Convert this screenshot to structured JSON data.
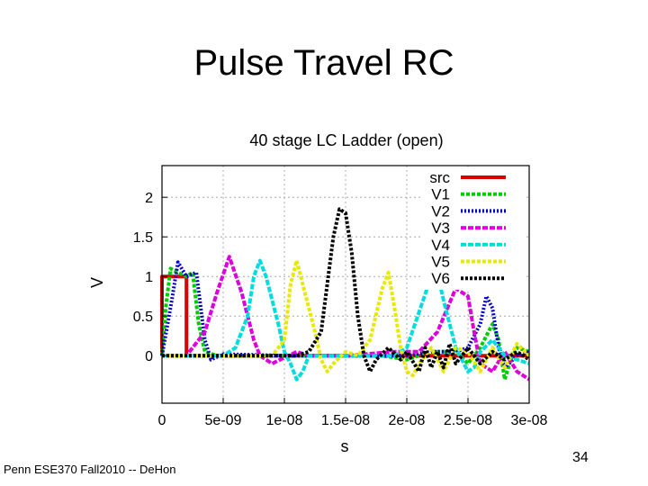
{
  "slide": {
    "title": "Pulse Travel RC",
    "footer": "Penn ESE370 Fall2010 -- DeHon",
    "page_number": "34"
  },
  "chart_data": {
    "type": "line",
    "title": "40 stage LC Ladder (open)",
    "xlabel": "s",
    "ylabel": "V",
    "xlim": [
      0,
      3e-08
    ],
    "ylim": [
      -0.6,
      2.4
    ],
    "x_ticks": [
      {
        "value": 0,
        "label": "0"
      },
      {
        "value": 5e-09,
        "label": "5e-09"
      },
      {
        "value": 1e-08,
        "label": "1e-08"
      },
      {
        "value": 1.5e-08,
        "label": "1.5e-08"
      },
      {
        "value": 2e-08,
        "label": "2e-08"
      },
      {
        "value": 2.5e-08,
        "label": "2.5e-08"
      },
      {
        "value": 3e-08,
        "label": "3e-08"
      }
    ],
    "y_ticks": [
      {
        "value": 0,
        "label": "0"
      },
      {
        "value": 0.5,
        "label": "0.5"
      },
      {
        "value": 1,
        "label": "1"
      },
      {
        "value": 1.5,
        "label": "1.5"
      },
      {
        "value": 2,
        "label": "2"
      }
    ],
    "grid": true,
    "legend_position": "top-right",
    "series": [
      {
        "name": "src",
        "color": "#dd0000",
        "dash": "none",
        "points": [
          [
            0,
            0
          ],
          [
            0,
            1
          ],
          [
            2e-09,
            1
          ],
          [
            2e-09,
            0
          ],
          [
            3e-08,
            0
          ]
        ]
      },
      {
        "name": "V1",
        "color": "#00cc00",
        "dash": "4,2",
        "points": [
          [
            0,
            0
          ],
          [
            3e-10,
            0.6
          ],
          [
            7e-10,
            1.1
          ],
          [
            1.3e-09,
            1.05
          ],
          [
            2e-09,
            1.0
          ],
          [
            2.5e-09,
            1.05
          ],
          [
            3e-09,
            0.4
          ],
          [
            3.5e-09,
            0.05
          ],
          [
            4.5e-09,
            0
          ],
          [
            1e-08,
            0
          ],
          [
            1.8e-08,
            0
          ],
          [
            2e-08,
            -0.05
          ],
          [
            2.2e-08,
            0.05
          ],
          [
            2.4e-08,
            0.05
          ],
          [
            2.5e-08,
            -0.1
          ],
          [
            2.6e-08,
            0.1
          ],
          [
            2.7e-08,
            0.4
          ],
          [
            2.75e-08,
            0.2
          ],
          [
            2.8e-08,
            -0.3
          ],
          [
            2.85e-08,
            -0.05
          ],
          [
            2.9e-08,
            0.1
          ],
          [
            3e-08,
            0.05
          ]
        ]
      },
      {
        "name": "V2",
        "color": "#0000cc",
        "dash": "2,2",
        "points": [
          [
            0,
            0
          ],
          [
            8e-10,
            0.7
          ],
          [
            1.3e-09,
            1.18
          ],
          [
            2e-09,
            1.0
          ],
          [
            2.8e-09,
            1.05
          ],
          [
            3.5e-09,
            0.2
          ],
          [
            4e-09,
            -0.05
          ],
          [
            5e-09,
            0.02
          ],
          [
            1e-08,
            0
          ],
          [
            2e-08,
            0
          ],
          [
            2.2e-08,
            0.05
          ],
          [
            2.4e-08,
            0.05
          ],
          [
            2.5e-08,
            0.1
          ],
          [
            2.6e-08,
            0.4
          ],
          [
            2.65e-08,
            0.75
          ],
          [
            2.7e-08,
            0.6
          ],
          [
            2.75e-08,
            0.1
          ],
          [
            2.8e-08,
            -0.15
          ],
          [
            2.9e-08,
            0
          ],
          [
            3e-08,
            0.05
          ]
        ]
      },
      {
        "name": "V3",
        "color": "#dd00dd",
        "dash": "6,2",
        "points": [
          [
            0,
            0
          ],
          [
            2e-09,
            0
          ],
          [
            3.5e-09,
            0.3
          ],
          [
            4.5e-09,
            0.8
          ],
          [
            5.5e-09,
            1.25
          ],
          [
            6.5e-09,
            0.8
          ],
          [
            7.5e-09,
            0.2
          ],
          [
            8e-09,
            0
          ],
          [
            9e-09,
            -0.1
          ],
          [
            1.1e-08,
            0.05
          ],
          [
            1.2e-08,
            0
          ],
          [
            1.5e-08,
            0
          ],
          [
            1.9e-08,
            0.05
          ],
          [
            2.1e-08,
            0.05
          ],
          [
            2.25e-08,
            0.3
          ],
          [
            2.4e-08,
            0.85
          ],
          [
            2.5e-08,
            0.75
          ],
          [
            2.55e-08,
            0.3
          ],
          [
            2.6e-08,
            -0.1
          ],
          [
            2.7e-08,
            -0.2
          ],
          [
            2.8e-08,
            0.05
          ],
          [
            2.9e-08,
            -0.2
          ],
          [
            3e-08,
            -0.3
          ]
        ]
      },
      {
        "name": "V4",
        "color": "#00dddd",
        "dash": "6,2",
        "points": [
          [
            0,
            0
          ],
          [
            5e-09,
            0
          ],
          [
            6e-09,
            0.1
          ],
          [
            7e-09,
            0.5
          ],
          [
            7.5e-09,
            1.0
          ],
          [
            8e-09,
            1.2
          ],
          [
            8.5e-09,
            1.0
          ],
          [
            9.5e-09,
            0.4
          ],
          [
            1e-08,
            0.05
          ],
          [
            1.05e-08,
            -0.1
          ],
          [
            1.1e-08,
            -0.3
          ],
          [
            1.15e-08,
            -0.2
          ],
          [
            1.2e-08,
            0
          ],
          [
            1.6e-08,
            0
          ],
          [
            1.9e-08,
            0
          ],
          [
            2e-08,
            0.1
          ],
          [
            2.1e-08,
            0.55
          ],
          [
            2.2e-08,
            1.0
          ],
          [
            2.25e-08,
            1.05
          ],
          [
            2.3e-08,
            0.7
          ],
          [
            2.4e-08,
            0.1
          ],
          [
            2.5e-08,
            -0.2
          ],
          [
            2.55e-08,
            -0.15
          ],
          [
            2.6e-08,
            0.05
          ],
          [
            2.7e-08,
            0.2
          ],
          [
            2.8e-08,
            0
          ],
          [
            3e-08,
            -0.1
          ]
        ]
      },
      {
        "name": "V5",
        "color": "#e8e800",
        "dash": "4,2",
        "points": [
          [
            0,
            0
          ],
          [
            9e-09,
            0
          ],
          [
            1e-08,
            0.2
          ],
          [
            1.05e-08,
            0.9
          ],
          [
            1.1e-08,
            1.2
          ],
          [
            1.15e-08,
            0.9
          ],
          [
            1.25e-08,
            0.3
          ],
          [
            1.3e-08,
            -0.05
          ],
          [
            1.35e-08,
            -0.2
          ],
          [
            1.4e-08,
            -0.1
          ],
          [
            1.5e-08,
            0.05
          ],
          [
            1.6e-08,
            0
          ],
          [
            1.7e-08,
            0.2
          ],
          [
            1.8e-08,
            0.85
          ],
          [
            1.85e-08,
            1.05
          ],
          [
            1.9e-08,
            0.6
          ],
          [
            1.95e-08,
            0.1
          ],
          [
            2e-08,
            -0.2
          ],
          [
            2.05e-08,
            -0.25
          ],
          [
            2.1e-08,
            -0.1
          ],
          [
            2.2e-08,
            0.1
          ],
          [
            2.3e-08,
            -0.2
          ],
          [
            2.4e-08,
            0.1
          ],
          [
            2.5e-08,
            0.05
          ],
          [
            2.6e-08,
            -0.2
          ],
          [
            2.7e-08,
            0.1
          ],
          [
            2.8e-08,
            -0.15
          ],
          [
            2.9e-08,
            0.15
          ],
          [
            3e-08,
            0
          ]
        ]
      },
      {
        "name": "V6",
        "color": "#000000",
        "dash": "3,2",
        "points": [
          [
            0,
            0
          ],
          [
            1.1e-08,
            0
          ],
          [
            1.2e-08,
            0.05
          ],
          [
            1.3e-08,
            0.3
          ],
          [
            1.35e-08,
            0.9
          ],
          [
            1.4e-08,
            1.5
          ],
          [
            1.45e-08,
            1.85
          ],
          [
            1.5e-08,
            1.8
          ],
          [
            1.55e-08,
            1.3
          ],
          [
            1.6e-08,
            0.5
          ],
          [
            1.65e-08,
            0
          ],
          [
            1.7e-08,
            -0.2
          ],
          [
            1.75e-08,
            -0.05
          ],
          [
            1.85e-08,
            0.1
          ],
          [
            1.95e-08,
            -0.05
          ],
          [
            2e-08,
            0.05
          ],
          [
            2.1e-08,
            -0.2
          ],
          [
            2.15e-08,
            0.1
          ],
          [
            2.2e-08,
            -0.15
          ],
          [
            2.25e-08,
            0.05
          ],
          [
            2.3e-08,
            -0.15
          ],
          [
            2.35e-08,
            0.15
          ],
          [
            2.4e-08,
            -0.1
          ],
          [
            2.5e-08,
            0.1
          ],
          [
            2.6e-08,
            -0.1
          ],
          [
            2.7e-08,
            0.05
          ],
          [
            2.8e-08,
            -0.05
          ],
          [
            2.9e-08,
            0.05
          ],
          [
            3e-08,
            -0.05
          ]
        ]
      }
    ]
  }
}
